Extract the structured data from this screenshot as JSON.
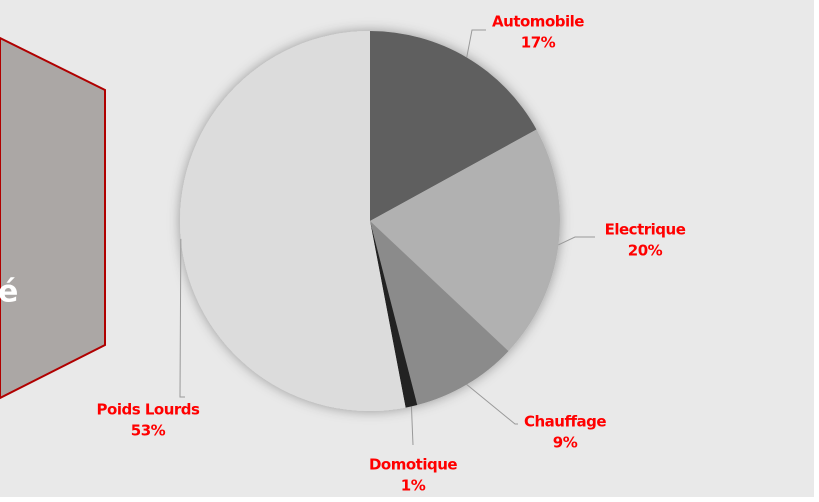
{
  "side_panel": {
    "text": "é"
  },
  "chart_data": {
    "type": "pie",
    "categories": [
      "Automobile",
      "Electrique",
      "Chauffage",
      "Domotique",
      "Poids Lourds"
    ],
    "values": [
      17,
      20,
      9,
      1,
      53
    ],
    "value_labels": [
      "17%",
      "20%",
      "9%",
      "1%",
      "53%"
    ],
    "colors": [
      "#5f5f5f",
      "#b1b1b1",
      "#8b8b8b",
      "#222222",
      "#dcdcdc"
    ]
  }
}
